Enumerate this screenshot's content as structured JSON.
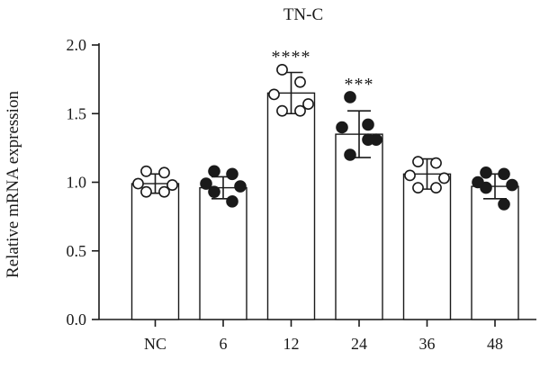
{
  "chart_data": {
    "type": "bar",
    "title": "TN-C",
    "xlabel": "",
    "ylabel": "Relative mRNA expression",
    "ylim": [
      0,
      2.0
    ],
    "yticks": [
      "0.0",
      "0.5",
      "1.0",
      "1.5",
      "2.0"
    ],
    "categories": [
      "NC",
      "6",
      "12",
      "24",
      "36",
      "48"
    ],
    "values": [
      0.99,
      0.96,
      1.65,
      1.35,
      1.06,
      0.97
    ],
    "errors": [
      0.07,
      0.08,
      0.15,
      0.17,
      0.11,
      0.09
    ],
    "significance": [
      "",
      "",
      "****",
      "***",
      "",
      ""
    ],
    "marker_fill": [
      "open",
      "filled",
      "open",
      "filled",
      "open",
      "filled"
    ],
    "points": [
      [
        1.08,
        1.07,
        0.99,
        0.98,
        0.93,
        0.93
      ],
      [
        1.08,
        1.06,
        0.99,
        0.97,
        0.93,
        0.86
      ],
      [
        1.82,
        1.73,
        1.64,
        1.57,
        1.52,
        1.52
      ],
      [
        1.62,
        1.42,
        1.4,
        1.31,
        1.2,
        1.31
      ],
      [
        1.15,
        1.14,
        1.05,
        1.03,
        0.96,
        0.96
      ],
      [
        1.07,
        1.06,
        1.0,
        0.98,
        0.96,
        0.84
      ]
    ]
  }
}
